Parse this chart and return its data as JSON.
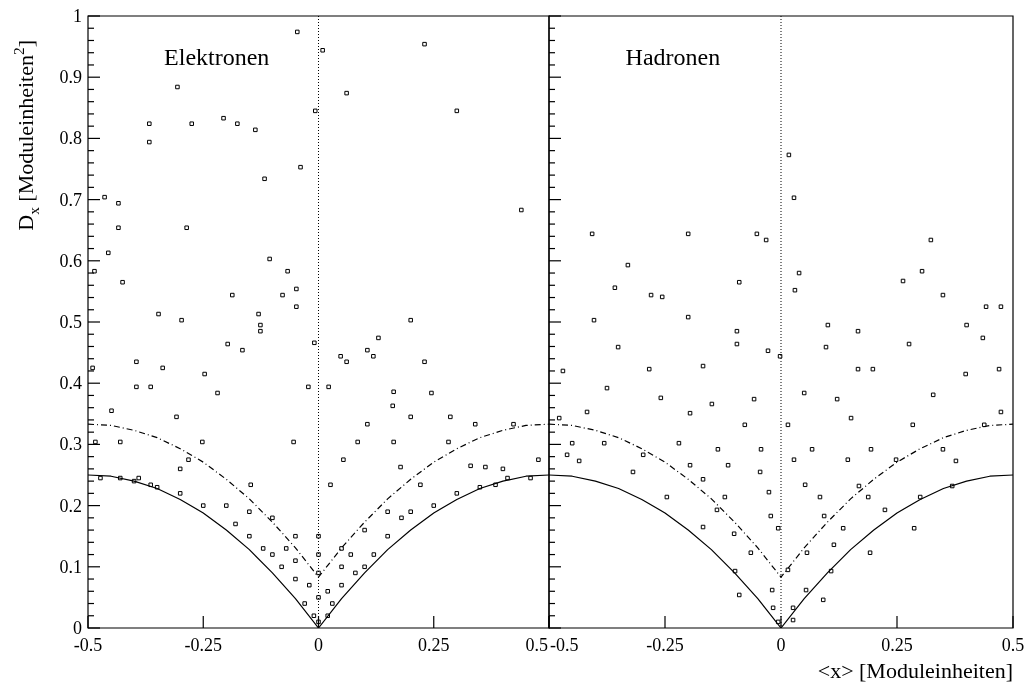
{
  "chart_data": [
    {
      "type": "scatter",
      "title": "Elektronen",
      "ylabel": "D$_{x}$ [Moduleinheiten$^{2}$]",
      "xlim": [
        -0.5,
        0.5
      ],
      "ylim": [
        0,
        1
      ],
      "xticks": [
        -0.5,
        -0.25,
        0,
        0.25,
        0.5
      ],
      "yticks": [
        0,
        {
          "value": 0.02,
          "label": null
        },
        {
          "value": 0.04,
          "label": null
        },
        {
          "value": 0.06,
          "label": null
        },
        {
          "value": 0.08,
          "label": null
        },
        0.1,
        {
          "value": 0.12,
          "label": null
        },
        {
          "value": 0.14,
          "label": null
        },
        {
          "value": 0.16,
          "label": null
        },
        {
          "value": 0.18,
          "label": null
        },
        0.2,
        {
          "value": 0.22,
          "label": null
        },
        {
          "value": 0.24,
          "label": null
        },
        {
          "value": 0.26,
          "label": null
        },
        {
          "value": 0.28,
          "label": null
        },
        0.3,
        {
          "value": 0.32,
          "label": null
        },
        {
          "value": 0.34,
          "label": null
        },
        {
          "value": 0.36,
          "label": null
        },
        {
          "value": 0.38,
          "label": null
        },
        0.4,
        {
          "value": 0.42,
          "label": null
        },
        {
          "value": 0.44,
          "label": null
        },
        {
          "value": 0.46,
          "label": null
        },
        {
          "value": 0.48,
          "label": null
        },
        0.5,
        {
          "value": 0.52,
          "label": null
        },
        {
          "value": 0.54,
          "label": null
        },
        {
          "value": 0.56,
          "label": null
        },
        {
          "value": 0.58,
          "label": null
        },
        0.6,
        {
          "value": 0.62,
          "label": null
        },
        {
          "value": 0.64,
          "label": null
        },
        {
          "value": 0.66,
          "label": null
        },
        {
          "value": 0.68,
          "label": null
        },
        0.7,
        {
          "value": 0.72,
          "label": null
        },
        {
          "value": 0.74,
          "label": null
        },
        {
          "value": 0.76,
          "label": null
        },
        {
          "value": 0.78,
          "label": null
        },
        0.8,
        {
          "value": 0.82,
          "label": null
        },
        {
          "value": 0.84,
          "label": null
        },
        {
          "value": 0.86,
          "label": null
        },
        {
          "value": 0.88,
          "label": null
        },
        0.9,
        {
          "value": 0.92,
          "label": null
        },
        {
          "value": 0.94,
          "label": null
        },
        {
          "value": 0.96,
          "label": null
        },
        {
          "value": 0.98,
          "label": null
        },
        1
      ],
      "marker": "square",
      "ref_lines": [
        {
          "axis": "x",
          "value": 0,
          "color": "#000000",
          "line_style": "dotted"
        }
      ],
      "series": [
        {
          "color": "#000000",
          "x": [
            -0.046,
            0.009,
            0.23,
            0.061,
            -0.007,
            0.3,
            0.44,
            -0.306,
            -0.367,
            -0.367,
            -0.275,
            -0.206,
            -0.176,
            -0.137,
            -0.117,
            -0.039,
            -0.464,
            -0.434,
            -0.434,
            -0.286,
            -0.456,
            -0.425,
            -0.486,
            -0.106,
            -0.067,
            -0.187,
            -0.048,
            -0.078,
            -0.048,
            -0.347,
            -0.297,
            -0.13,
            0.2,
            0.13,
            0.106,
            0.119,
            0.048,
            0.061,
            -0.126,
            -0.126,
            -0.197,
            -0.009,
            -0.165,
            0.23,
            -0.395,
            -0.338,
            -0.49,
            -0.247,
            -0.395,
            -0.364,
            -0.219,
            -0.022,
            0.022,
            0.163,
            0.245,
            0.161,
            0.2,
            -0.308,
            -0.449,
            0.286,
            0.34,
            0.423,
            0.106,
            -0.252,
            -0.054,
            0.163,
            0.282,
            0.085,
            -0.484,
            -0.43,
            -0.282,
            0.054,
            0.178,
            0.33,
            0.362,
            0.477,
            -0.364,
            -0.147,
            0.026,
            0.221,
            0.384,
            -0.473,
            -0.43,
            -0.39,
            0.41,
            0.46,
            -0.2,
            -0.15,
            -0.1,
            -0.05,
            0,
            0.05,
            0.1,
            0.15,
            0.2,
            -0.1,
            -0.05,
            0,
            0.05,
            0.1,
            0,
            -0.03,
            0.03,
            0,
            -0.01,
            0.02,
            -0.08,
            0.08,
            -0.12,
            0.12,
            -0.18,
            0.18,
            -0.25,
            0.25,
            -0.3,
            0.3,
            -0.35,
            -0.4,
            0.35,
            -0.05,
            0.05,
            -0.02,
            0.02,
            -0.07,
            0.07,
            0,
            -0.15,
            0.15,
            -0.3,
            0.4
          ],
          "values": [
            0.974,
            0.944,
            0.954,
            0.874,
            0.845,
            0.845,
            0.683,
            0.884,
            0.824,
            0.794,
            0.824,
            0.833,
            0.824,
            0.814,
            0.734,
            0.753,
            0.704,
            0.694,
            0.654,
            0.654,
            0.613,
            0.565,
            0.583,
            0.603,
            0.583,
            0.544,
            0.554,
            0.544,
            0.525,
            0.513,
            0.503,
            0.513,
            0.503,
            0.474,
            0.454,
            0.444,
            0.444,
            0.435,
            0.495,
            0.485,
            0.464,
            0.466,
            0.454,
            0.435,
            0.435,
            0.425,
            0.425,
            0.415,
            0.394,
            0.394,
            0.384,
            0.394,
            0.394,
            0.386,
            0.384,
            0.363,
            0.345,
            0.345,
            0.355,
            0.345,
            0.333,
            0.333,
            0.333,
            0.304,
            0.304,
            0.304,
            0.304,
            0.304,
            0.304,
            0.304,
            0.275,
            0.275,
            0.263,
            0.265,
            0.263,
            0.275,
            0.234,
            0.234,
            0.234,
            0.234,
            0.234,
            0.245,
            0.245,
            0.245,
            0.245,
            0.245,
            0.2,
            0.15,
            0.12,
            0.08,
            0.05,
            0.07,
            0.1,
            0.15,
            0.19,
            0.18,
            0.15,
            0.12,
            0.13,
            0.16,
            0.09,
            0.04,
            0.04,
            0.01,
            0.02,
            0.02,
            0.1,
            0.09,
            0.13,
            0.12,
            0.17,
            0.18,
            0.2,
            0.2,
            0.22,
            0.22,
            0.23,
            0.24,
            0.23,
            0.11,
            0.1,
            0.07,
            0.06,
            0.13,
            0.12,
            0.15,
            0.19,
            0.19,
            0.26,
            0.26
          ]
        },
        {
          "type": "line",
          "color": "#000000",
          "marker": "none",
          "line_style": "solid",
          "x": [
            -0.5,
            -0.45,
            -0.4,
            -0.35,
            -0.3,
            -0.25,
            -0.2,
            -0.15,
            -0.1,
            -0.05,
            0,
            0.05,
            0.1,
            0.15,
            0.2,
            0.25,
            0.3,
            0.35,
            0.4,
            0.45,
            0.5
          ],
          "values": [
            0.25,
            0.248,
            0.24,
            0.228,
            0.21,
            0.188,
            0.16,
            0.128,
            0.09,
            0.048,
            0,
            0.048,
            0.09,
            0.128,
            0.16,
            0.188,
            0.21,
            0.228,
            0.24,
            0.248,
            0.25
          ]
        },
        {
          "type": "line",
          "color": "#000000",
          "marker": "none",
          "line_style": "dashed",
          "x": [
            -0.5,
            -0.45,
            -0.4,
            -0.35,
            -0.3,
            -0.25,
            -0.2,
            -0.15,
            -0.1,
            -0.05,
            0,
            0.05,
            0.1,
            0.15,
            0.2,
            0.25,
            0.3,
            0.35,
            0.4,
            0.45,
            0.5
          ],
          "values": [
            0.333,
            0.331,
            0.323,
            0.311,
            0.293,
            0.271,
            0.243,
            0.211,
            0.173,
            0.131,
            0.083,
            0.131,
            0.173,
            0.211,
            0.243,
            0.271,
            0.293,
            0.311,
            0.323,
            0.331,
            0.333
          ]
        }
      ]
    },
    {
      "type": "scatter",
      "title": "Hadronen",
      "xlabel": "<x> [Moduleinheiten]",
      "xlim": [
        -0.5,
        0.5
      ],
      "ylim": [
        0,
        1
      ],
      "xticks": [
        -0.5,
        -0.25,
        0,
        0.25,
        0.5
      ],
      "tick_labels": "x",
      "yticks": [
        {
          "value": 0,
          "label": null
        },
        {
          "value": 0.02,
          "label": null
        },
        {
          "value": 0.04,
          "label": null
        },
        {
          "value": 0.06,
          "label": null
        },
        {
          "value": 0.08,
          "label": null
        },
        {
          "value": 0.1,
          "label": null
        },
        {
          "value": 0.12,
          "label": null
        },
        {
          "value": 0.14,
          "label": null
        },
        {
          "value": 0.16,
          "label": null
        },
        {
          "value": 0.18,
          "label": null
        },
        {
          "value": 0.2,
          "label": null
        },
        {
          "value": 0.22,
          "label": null
        },
        {
          "value": 0.24,
          "label": null
        },
        {
          "value": 0.26,
          "label": null
        },
        {
          "value": 0.28,
          "label": null
        },
        {
          "value": 0.3,
          "label": null
        },
        {
          "value": 0.32,
          "label": null
        },
        {
          "value": 0.34,
          "label": null
        },
        {
          "value": 0.36,
          "label": null
        },
        {
          "value": 0.38,
          "label": null
        },
        {
          "value": 0.4,
          "label": null
        },
        {
          "value": 0.42,
          "label": null
        },
        {
          "value": 0.44,
          "label": null
        },
        {
          "value": 0.46,
          "label": null
        },
        {
          "value": 0.48,
          "label": null
        },
        {
          "value": 0.5,
          "label": null
        },
        {
          "value": 0.52,
          "label": null
        },
        {
          "value": 0.54,
          "label": null
        },
        {
          "value": 0.56,
          "label": null
        },
        {
          "value": 0.58,
          "label": null
        },
        {
          "value": 0.6,
          "label": null
        },
        {
          "value": 0.62,
          "label": null
        },
        {
          "value": 0.64,
          "label": null
        },
        {
          "value": 0.66,
          "label": null
        },
        {
          "value": 0.68,
          "label": null
        },
        {
          "value": 0.7,
          "label": null
        },
        {
          "value": 0.72,
          "label": null
        },
        {
          "value": 0.74,
          "label": null
        },
        {
          "value": 0.76,
          "label": null
        },
        {
          "value": 0.78,
          "label": null
        },
        {
          "value": 0.8,
          "label": null
        },
        {
          "value": 0.82,
          "label": null
        },
        {
          "value": 0.84,
          "label": null
        },
        {
          "value": 0.86,
          "label": null
        },
        {
          "value": 0.88,
          "label": null
        },
        {
          "value": 0.9,
          "label": null
        },
        {
          "value": 0.92,
          "label": null
        },
        {
          "value": 0.94,
          "label": null
        },
        {
          "value": 0.96,
          "label": null
        },
        {
          "value": 0.98,
          "label": null
        },
        {
          "value": 1,
          "label": null
        }
      ],
      "marker": "square",
      "ref_lines": [
        {
          "axis": "x",
          "value": 0,
          "color": "#000000",
          "line_style": "dotted"
        }
      ],
      "series": [
        {
          "color": "#000000",
          "x": [
            0.017,
            0.028,
            -0.407,
            -0.2,
            -0.052,
            -0.032,
            0.323,
            -0.33,
            0.304,
            0.039,
            -0.358,
            -0.28,
            -0.256,
            -0.09,
            0.03,
            0.263,
            0.349,
            0.442,
            0.474,
            -0.403,
            -0.2,
            -0.095,
            0.101,
            0.166,
            0.4,
            -0.351,
            -0.095,
            -0.028,
            0.097,
            0.276,
            0.435,
            -0.47,
            -0.284,
            -0.168,
            -0.002,
            0.166,
            0.198,
            0.398,
            0.47,
            -0.375,
            -0.259,
            -0.149,
            -0.058,
            0.05,
            0.121,
            0.328,
            0.474,
            -0.478,
            -0.418,
            -0.196,
            -0.078,
            0.015,
            0.151,
            0.284,
            0.438,
            -0.45,
            -0.381,
            -0.22,
            -0.136,
            -0.043,
            0.067,
            0.194,
            0.349,
            -0.461,
            -0.297,
            -0.196,
            -0.114,
            0.028,
            0.144,
            0.248,
            0.377,
            -0.435,
            -0.319,
            -0.168,
            -0.045,
            0.052,
            0.168,
            0.369,
            -0.246,
            -0.121,
            -0.026,
            0.084,
            0.188,
            0.3,
            -0.138,
            -0.022,
            0.093,
            0.224,
            -0.168,
            -0.006,
            0.134,
            0.287,
            -0.101,
            0.114,
            -0.065,
            0.056,
            0.192,
            -0.099,
            0.015,
            0.108,
            -0.019,
            0.054,
            -0.017,
            0.026,
            -0.006,
            0.026,
            0.091,
            -0.09
          ],
          "values": [
            0.773,
            0.703,
            0.644,
            0.644,
            0.644,
            0.634,
            0.634,
            0.593,
            0.583,
            0.58,
            0.556,
            0.544,
            0.541,
            0.565,
            0.552,
            0.567,
            0.544,
            0.525,
            0.525,
            0.503,
            0.508,
            0.485,
            0.495,
            0.485,
            0.495,
            0.459,
            0.464,
            0.453,
            0.459,
            0.464,
            0.474,
            0.42,
            0.423,
            0.428,
            0.444,
            0.423,
            0.423,
            0.415,
            0.423,
            0.392,
            0.376,
            0.366,
            0.374,
            0.384,
            0.374,
            0.381,
            0.353,
            0.343,
            0.353,
            0.351,
            0.332,
            0.332,
            0.343,
            0.332,
            0.332,
            0.302,
            0.302,
            0.302,
            0.292,
            0.292,
            0.292,
            0.292,
            0.292,
            0.283,
            0.283,
            0.266,
            0.266,
            0.275,
            0.275,
            0.275,
            0.273,
            0.273,
            0.255,
            0.243,
            0.255,
            0.234,
            0.232,
            0.232,
            0.214,
            0.214,
            0.222,
            0.214,
            0.214,
            0.214,
            0.193,
            0.183,
            0.183,
            0.193,
            0.165,
            0.163,
            0.163,
            0.163,
            0.154,
            0.136,
            0.123,
            0.123,
            0.123,
            0.093,
            0.095,
            0.093,
            0.062,
            0.062,
            0.033,
            0.013,
            0.01,
            0.033,
            0.046,
            0.054
          ]
        },
        {
          "type": "line",
          "color": "#000000",
          "marker": "none",
          "line_style": "solid",
          "x": [
            -0.5,
            -0.45,
            -0.4,
            -0.35,
            -0.3,
            -0.25,
            -0.2,
            -0.15,
            -0.1,
            -0.05,
            0,
            0.05,
            0.1,
            0.15,
            0.2,
            0.25,
            0.3,
            0.35,
            0.4,
            0.45,
            0.5
          ],
          "values": [
            0.25,
            0.248,
            0.24,
            0.228,
            0.21,
            0.188,
            0.16,
            0.128,
            0.09,
            0.048,
            0,
            0.048,
            0.09,
            0.128,
            0.16,
            0.188,
            0.21,
            0.228,
            0.24,
            0.248,
            0.25
          ]
        },
        {
          "type": "line",
          "color": "#000000",
          "marker": "none",
          "line_style": "dashed",
          "x": [
            -0.5,
            -0.45,
            -0.4,
            -0.35,
            -0.3,
            -0.25,
            -0.2,
            -0.15,
            -0.1,
            -0.05,
            0,
            0.05,
            0.1,
            0.15,
            0.2,
            0.25,
            0.3,
            0.35,
            0.4,
            0.45,
            0.5
          ],
          "values": [
            0.333,
            0.331,
            0.323,
            0.311,
            0.293,
            0.271,
            0.243,
            0.211,
            0.173,
            0.131,
            0.083,
            0.131,
            0.173,
            0.211,
            0.243,
            0.271,
            0.293,
            0.311,
            0.323,
            0.331,
            0.333
          ]
        }
      ]
    }
  ]
}
